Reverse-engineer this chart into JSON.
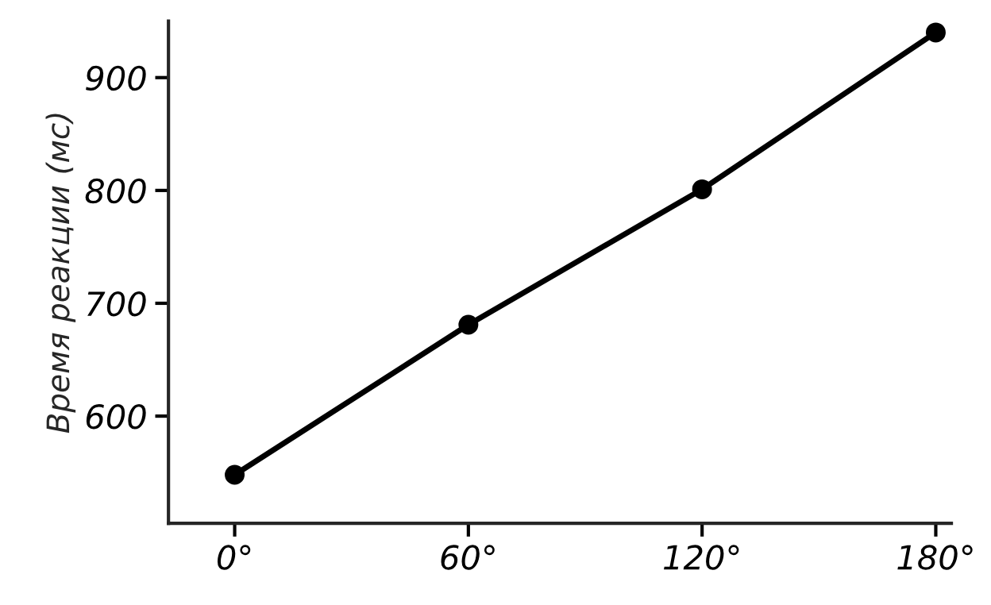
{
  "chart_data": {
    "type": "line",
    "ylabel": "Время реакции (мс)",
    "x": [
      0,
      60,
      120,
      180
    ],
    "series": [
      {
        "color": "#000000",
        "values": [
          548,
          681,
          801,
          940
        ]
      }
    ],
    "xlim": [
      -17,
      184
    ],
    "ylim": [
      505,
      950
    ],
    "xticks": [
      {
        "value": 0,
        "label": "0°"
      },
      {
        "value": 60,
        "label": "60°"
      },
      {
        "value": 120,
        "label": "120°"
      },
      {
        "value": 180,
        "label": "180°"
      }
    ],
    "yticks": [
      600,
      700,
      800,
      900
    ],
    "grid": false,
    "legend": false,
    "marker": "circle",
    "line_style": "solid"
  }
}
